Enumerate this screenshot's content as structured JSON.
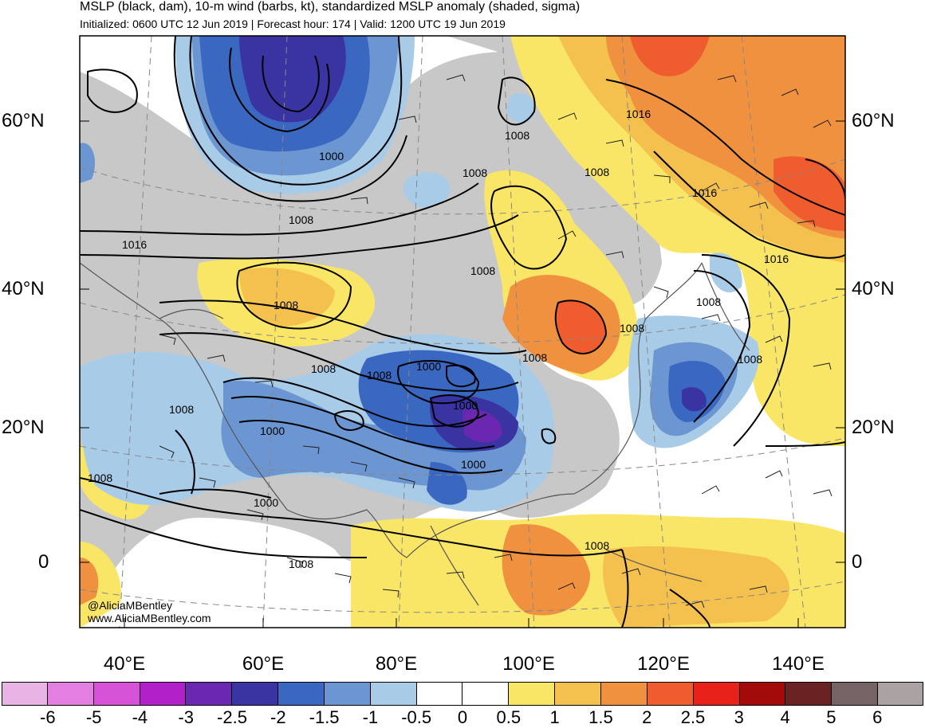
{
  "header": {
    "title": "MSLP (black, dam), 10-m wind (barbs, kt), standardized MSLP anomaly (shaded, sigma)",
    "subtitle": "Initialized: 0600 UTC 12 Jun 2019 | Forecast hour: 174 | Valid: 1200 UTC 19 Jun 2019"
  },
  "axes": {
    "lat_left": [
      "60°N",
      "40°N",
      "20°N",
      "0"
    ],
    "lat_right": [
      "60°N",
      "40°N",
      "20°N",
      "0"
    ],
    "lon_bottom": [
      "40°E",
      "60°E",
      "80°E",
      "100°E",
      "120°E",
      "140°E"
    ]
  },
  "contour_labels": [
    "1000",
    "1008",
    "1008",
    "1008",
    "1016",
    "1016",
    "1008",
    "1016",
    "1008",
    "1008",
    "1008",
    "1016",
    "1008",
    "1008",
    "1008",
    "1000",
    "1008",
    "1000",
    "1000",
    "1000",
    "1000",
    "1008",
    "1008",
    "1008",
    "1008",
    "1008"
  ],
  "credit": {
    "handle": "@AliciaMBentley",
    "site": "www.AliciaMBentley.com"
  },
  "colorbar": {
    "colors": [
      "#e8b4e6",
      "#e27fe0",
      "#d653d8",
      "#b220c9",
      "#6a28b0",
      "#3a33a2",
      "#3a67c0",
      "#6c96d2",
      "#a8cbe8",
      "#ffffff",
      "#ffffff",
      "#f9e666",
      "#f4c04e",
      "#f09140",
      "#ef5d2f",
      "#e8221b",
      "#a30b0b",
      "#6b2222",
      "#756463",
      "#aaa2a3"
    ],
    "labels": [
      "-6",
      "-5",
      "-4",
      "-3",
      "-2.5",
      "-2",
      "-1.5",
      "-1",
      "-0.5",
      "0",
      "0.5",
      "1",
      "1.5",
      "2",
      "2.5",
      "3",
      "4",
      "5",
      "6"
    ]
  },
  "map_colors": {
    "land_gray": "#c8c8c8",
    "blue_light": "#a8cbe8",
    "blue_mid": "#6c96d2",
    "blue_dark": "#3a67c0",
    "blue_deep": "#3a33a2",
    "purple": "#6a28b0",
    "yellow": "#f9e666",
    "orange_light": "#f4c04e",
    "orange": "#f09140",
    "red_orange": "#ef5d2f"
  }
}
